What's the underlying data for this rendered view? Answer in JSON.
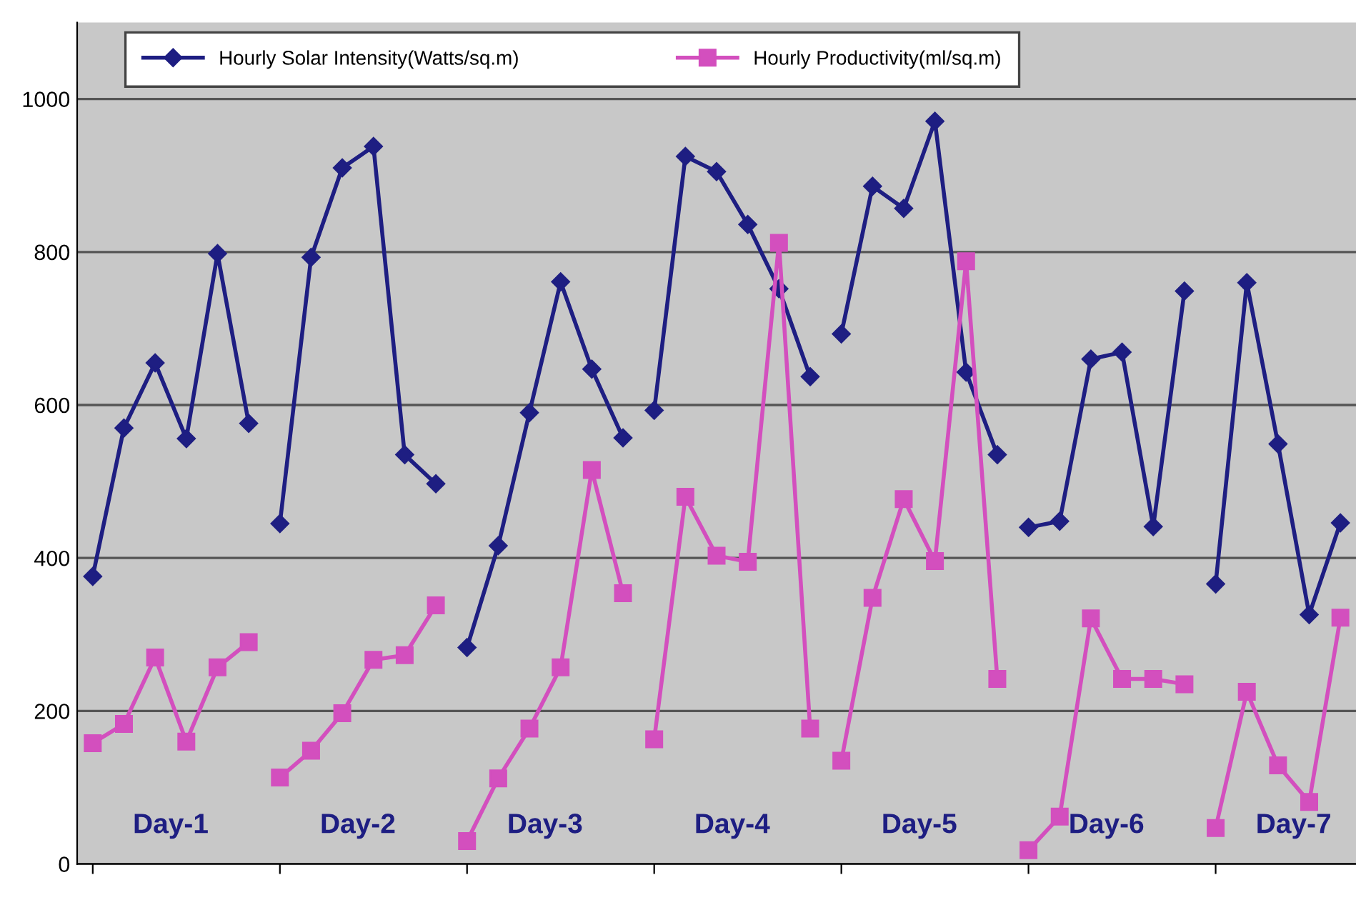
{
  "chart_data": {
    "type": "line",
    "categories": [
      null,
      null,
      null,
      null,
      null,
      null,
      null,
      null,
      null,
      null,
      null,
      null,
      null,
      null,
      null,
      null,
      null,
      null,
      null,
      null,
      null,
      null,
      null,
      null,
      null,
      null,
      null,
      null,
      null,
      null,
      null,
      null,
      null,
      null,
      null,
      null,
      null,
      null,
      null,
      null,
      null
    ],
    "series": [
      {
        "name": "Hourly Solar Intensity(Watts/sq.m)",
        "color": "#1e1e82",
        "marker": "diamond",
        "values": [
          376,
          570,
          655,
          556,
          798,
          576,
          null,
          null,
          null,
          null,
          null,
          null,
          null,
          null,
          null,
          null,
          null,
          null,
          null,
          null,
          null,
          null,
          null,
          null,
          null,
          null,
          null,
          null,
          null,
          null,
          null,
          null,
          null,
          null,
          null,
          null,
          null,
          null,
          null,
          null,
          null
        ]
      },
      {
        "color": "#1e1e82",
        "marker": "diamond",
        "values": [
          null,
          null,
          null,
          null,
          null,
          null,
          445,
          793,
          910,
          938,
          535,
          497,
          null,
          null,
          null,
          null,
          null,
          null,
          null,
          null,
          null,
          null,
          null,
          null,
          null,
          null,
          null,
          null,
          null,
          null,
          null,
          null,
          null,
          null,
          null,
          null,
          null,
          null,
          null,
          null,
          null
        ]
      },
      {
        "color": "#1e1e82",
        "marker": "diamond",
        "values": [
          null,
          null,
          null,
          null,
          null,
          null,
          null,
          null,
          null,
          null,
          null,
          null,
          283,
          416,
          590,
          761,
          647,
          557,
          null,
          null,
          null,
          null,
          null,
          null,
          null,
          null,
          null,
          null,
          null,
          null,
          null,
          null,
          null,
          null,
          null,
          null,
          null,
          null,
          null,
          null,
          null
        ]
      },
      {
        "color": "#1e1e82",
        "marker": "diamond",
        "values": [
          null,
          null,
          null,
          null,
          null,
          null,
          null,
          null,
          null,
          null,
          null,
          null,
          null,
          null,
          null,
          null,
          null,
          null,
          593,
          925,
          905,
          836,
          752,
          637,
          null,
          null,
          null,
          null,
          null,
          null,
          null,
          null,
          null,
          null,
          null,
          null,
          null,
          null,
          null,
          null,
          null
        ]
      },
      {
        "color": "#1e1e82",
        "marker": "diamond",
        "values": [
          null,
          null,
          null,
          null,
          null,
          null,
          null,
          null,
          null,
          null,
          null,
          null,
          null,
          null,
          null,
          null,
          null,
          null,
          null,
          null,
          null,
          null,
          null,
          null,
          693,
          886,
          857,
          971,
          643,
          535,
          null,
          null,
          null,
          null,
          null,
          null,
          null,
          null,
          null,
          null,
          null
        ]
      },
      {
        "color": "#1e1e82",
        "marker": "diamond",
        "values": [
          null,
          null,
          null,
          null,
          null,
          null,
          null,
          null,
          null,
          null,
          null,
          null,
          null,
          null,
          null,
          null,
          null,
          null,
          null,
          null,
          null,
          null,
          null,
          null,
          null,
          null,
          null,
          null,
          null,
          null,
          440,
          448,
          660,
          669,
          441,
          749,
          null,
          null,
          null,
          null,
          null
        ]
      },
      {
        "color": "#1e1e82",
        "marker": "diamond",
        "values": [
          null,
          null,
          null,
          null,
          null,
          null,
          null,
          null,
          null,
          null,
          null,
          null,
          null,
          null,
          null,
          null,
          null,
          null,
          null,
          null,
          null,
          null,
          null,
          null,
          null,
          null,
          null,
          null,
          null,
          null,
          null,
          null,
          null,
          null,
          null,
          null,
          366,
          760,
          549,
          326,
          446
        ]
      },
      {
        "name": "Hourly Productivity(ml/sq.m)",
        "color": "#d34fbe",
        "marker": "square",
        "values": [
          158,
          183,
          270,
          160,
          257,
          290,
          null,
          null,
          null,
          null,
          null,
          null,
          null,
          null,
          null,
          null,
          null,
          null,
          null,
          null,
          null,
          null,
          null,
          null,
          null,
          null,
          null,
          null,
          null,
          null,
          null,
          null,
          null,
          null,
          null,
          null,
          null,
          null,
          null,
          null,
          null
        ]
      },
      {
        "color": "#d34fbe",
        "marker": "square",
        "values": [
          null,
          null,
          null,
          null,
          null,
          null,
          113,
          148,
          197,
          267,
          273,
          338,
          null,
          null,
          null,
          null,
          null,
          null,
          null,
          null,
          null,
          null,
          null,
          null,
          null,
          null,
          null,
          null,
          null,
          null,
          null,
          null,
          null,
          null,
          null,
          null,
          null,
          null,
          null,
          null,
          null
        ]
      },
      {
        "color": "#d34fbe",
        "marker": "square",
        "values": [
          null,
          null,
          null,
          null,
          null,
          null,
          null,
          null,
          null,
          null,
          null,
          null,
          30,
          112,
          177,
          257,
          515,
          354,
          null,
          null,
          null,
          null,
          null,
          null,
          null,
          null,
          null,
          null,
          null,
          null,
          null,
          null,
          null,
          null,
          null,
          null,
          null,
          null,
          null,
          null,
          null
        ]
      },
      {
        "color": "#d34fbe",
        "marker": "square",
        "values": [
          null,
          null,
          null,
          null,
          null,
          null,
          null,
          null,
          null,
          null,
          null,
          null,
          null,
          null,
          null,
          null,
          null,
          null,
          163,
          480,
          403,
          395,
          812,
          177,
          null,
          null,
          null,
          null,
          null,
          null,
          null,
          null,
          null,
          null,
          null,
          null,
          null,
          null,
          null,
          null,
          null
        ]
      },
      {
        "color": "#d34fbe",
        "marker": "square",
        "values": [
          null,
          null,
          null,
          null,
          null,
          null,
          null,
          null,
          null,
          null,
          null,
          null,
          null,
          null,
          null,
          null,
          null,
          null,
          null,
          null,
          null,
          null,
          null,
          null,
          135,
          348,
          477,
          396,
          788,
          242,
          null,
          null,
          null,
          null,
          null,
          null,
          null,
          null,
          null,
          null,
          null
        ]
      },
      {
        "color": "#d34fbe",
        "marker": "square",
        "values": [
          null,
          null,
          null,
          null,
          null,
          null,
          null,
          null,
          null,
          null,
          null,
          null,
          null,
          null,
          null,
          null,
          null,
          null,
          null,
          null,
          null,
          null,
          null,
          null,
          null,
          null,
          null,
          null,
          null,
          null,
          18,
          62,
          321,
          242,
          242,
          235,
          null,
          null,
          null,
          null,
          null
        ]
      },
      {
        "color": "#d34fbe",
        "marker": "square",
        "values": [
          null,
          null,
          null,
          null,
          null,
          null,
          null,
          null,
          null,
          null,
          null,
          null,
          null,
          null,
          null,
          null,
          null,
          null,
          null,
          null,
          null,
          null,
          null,
          null,
          null,
          null,
          null,
          null,
          null,
          null,
          null,
          null,
          null,
          null,
          null,
          null,
          47,
          225,
          129,
          81,
          322
        ]
      }
    ],
    "ylim": [
      0,
      1100
    ],
    "yticks": [
      0,
      200,
      400,
      600,
      800,
      1000
    ],
    "grid": "y",
    "legend": "top",
    "line_style": "solid",
    "annotations": [
      "Day-1",
      "Day-2",
      "Day-3",
      "Day-4",
      "Day-5",
      "Day-6",
      "Day-7"
    ]
  }
}
